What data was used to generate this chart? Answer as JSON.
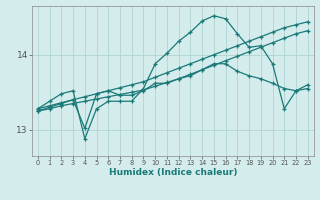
{
  "title": "",
  "xlabel": "Humidex (Indice chaleur)",
  "ylabel": "",
  "bg_color": "#d4ecec",
  "line_color": "#1a7a78",
  "grid_color": "#afd4d4",
  "xticks": [
    0,
    1,
    2,
    3,
    4,
    5,
    6,
    7,
    8,
    9,
    10,
    11,
    12,
    13,
    14,
    15,
    16,
    17,
    18,
    19,
    20,
    21,
    22,
    23
  ],
  "yticks": [
    13,
    14
  ],
  "xlim": [
    -0.5,
    23.5
  ],
  "ylim": [
    12.65,
    14.65
  ],
  "series": {
    "line_upper": {
      "x": [
        0,
        1,
        2,
        3,
        4,
        5,
        6,
        7,
        8,
        9,
        10,
        11,
        12,
        13,
        14,
        15,
        16,
        17,
        18,
        19,
        20,
        21,
        22,
        23
      ],
      "y": [
        13.28,
        13.38,
        13.48,
        13.52,
        12.88,
        13.28,
        13.38,
        13.38,
        13.38,
        13.55,
        13.88,
        14.02,
        14.18,
        14.3,
        14.45,
        14.52,
        14.48,
        14.28,
        14.1,
        14.12,
        13.88,
        13.28,
        13.52,
        13.6
      ]
    },
    "line_mid1": {
      "x": [
        0,
        1,
        2,
        3,
        4,
        5,
        6,
        7,
        8,
        9,
        10,
        11,
        12,
        13,
        14,
        15,
        16,
        17,
        18,
        19,
        20,
        21,
        22,
        23
      ],
      "y": [
        13.28,
        13.32,
        13.36,
        13.4,
        13.44,
        13.48,
        13.52,
        13.56,
        13.6,
        13.64,
        13.7,
        13.76,
        13.82,
        13.88,
        13.94,
        14.0,
        14.06,
        14.12,
        14.18,
        14.24,
        14.3,
        14.36,
        14.4,
        14.44
      ]
    },
    "line_mid2": {
      "x": [
        0,
        1,
        2,
        3,
        4,
        5,
        6,
        7,
        8,
        9,
        10,
        11,
        12,
        13,
        14,
        15,
        16,
        17,
        18,
        19,
        20,
        21,
        22,
        23
      ],
      "y": [
        13.25,
        13.28,
        13.32,
        13.35,
        13.38,
        13.41,
        13.44,
        13.47,
        13.5,
        13.53,
        13.58,
        13.63,
        13.68,
        13.74,
        13.8,
        13.86,
        13.92,
        13.98,
        14.04,
        14.1,
        14.16,
        14.22,
        14.28,
        14.32
      ]
    },
    "line_lower": {
      "x": [
        0,
        1,
        2,
        3,
        4,
        5,
        6,
        7,
        8,
        9,
        10,
        11,
        12,
        13,
        14,
        15,
        16,
        17,
        18,
        19,
        20,
        21,
        22,
        23
      ],
      "y": [
        13.25,
        13.3,
        13.35,
        13.4,
        13.02,
        13.48,
        13.52,
        13.46,
        13.46,
        13.52,
        13.62,
        13.62,
        13.68,
        13.72,
        13.8,
        13.88,
        13.88,
        13.78,
        13.72,
        13.68,
        13.62,
        13.55,
        13.52,
        13.55
      ]
    }
  }
}
